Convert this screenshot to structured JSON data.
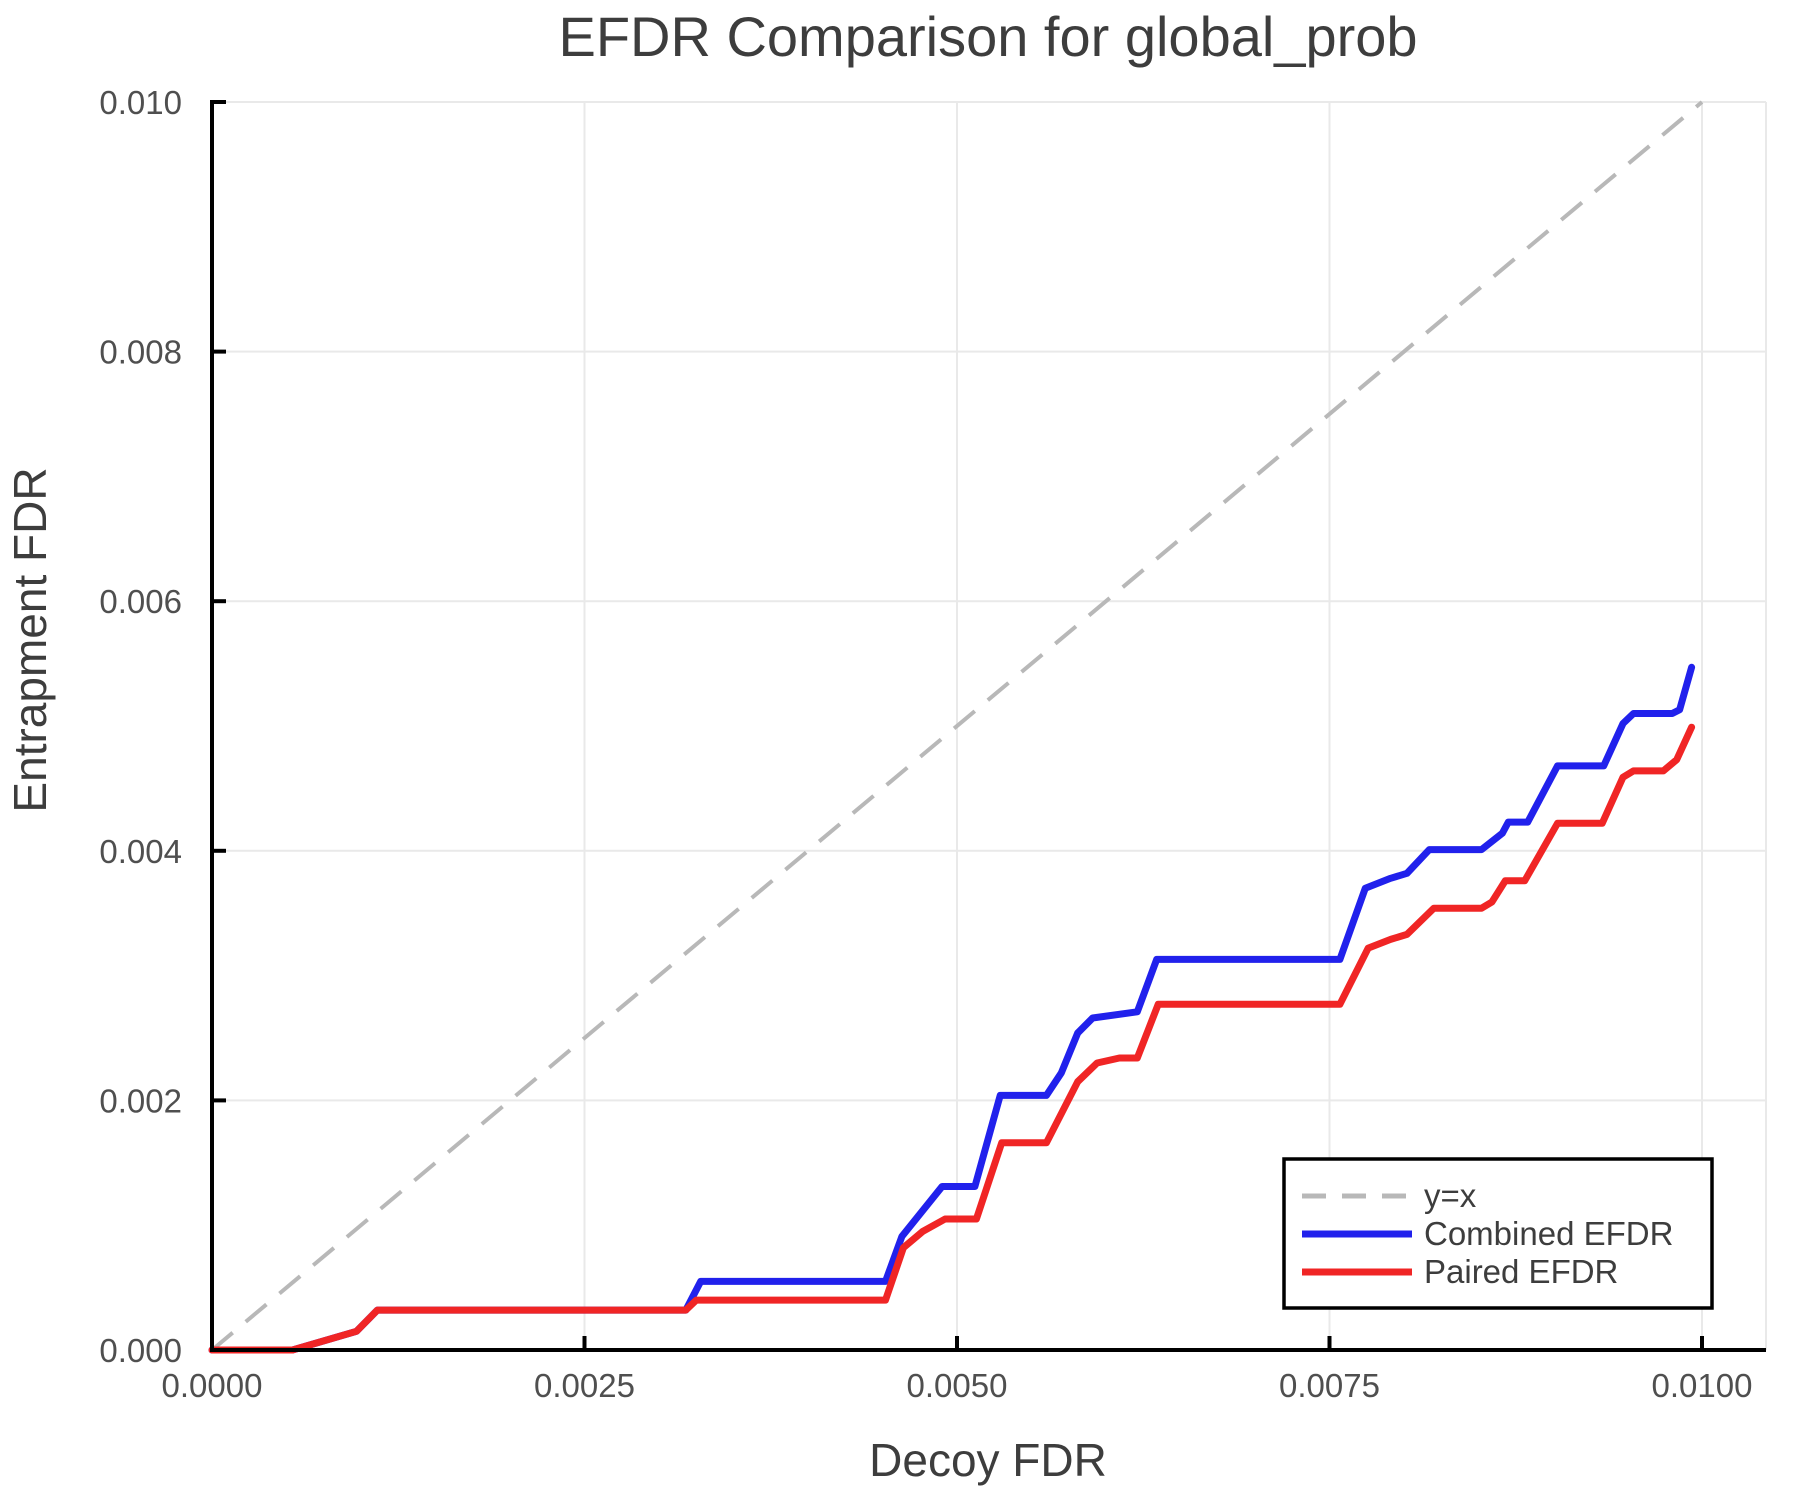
{
  "chart_data": {
    "type": "line",
    "title": "EFDR Comparison for global_prob",
    "xlabel": "Decoy FDR",
    "ylabel": "Entrapment FDR",
    "xlim": [
      0.0,
      0.01
    ],
    "ylim": [
      0.0,
      0.01
    ],
    "grid": true,
    "x_ticks": {
      "values": [
        0.0,
        0.0025,
        0.005,
        0.0075,
        0.01
      ],
      "labels": [
        "0.0000",
        "0.0025",
        "0.0050",
        "0.0075",
        "0.0100"
      ]
    },
    "y_ticks": {
      "values": [
        0.0,
        0.002,
        0.004,
        0.006,
        0.008,
        0.01
      ],
      "labels": [
        "0.000",
        "0.002",
        "0.004",
        "0.006",
        "0.008",
        "0.010"
      ]
    },
    "colors": {
      "grid": "#e9e9e9",
      "spine": "#000000",
      "tick_label": "#4f4f4f",
      "text": "#3d3d3d",
      "legend_border": "#000000",
      "legend_bg": "#ffffff"
    },
    "refline": {
      "label": "y=x",
      "color": "#b8b8b8",
      "style": "dashed",
      "points": [
        [
          0.0,
          0.0
        ],
        [
          0.01,
          0.01
        ]
      ]
    },
    "legend": {
      "position": "lower right",
      "entries": [
        "y=x",
        "Combined EFDR",
        "Paired EFDR"
      ]
    },
    "series": [
      {
        "name": "Combined EFDR",
        "color": "#2121ec",
        "points": [
          [
            0.0,
            0.0
          ],
          [
            0.00054,
            0.0
          ],
          [
            0.00097,
            0.00015
          ],
          [
            0.00111,
            0.00032
          ],
          [
            0.00318,
            0.00032
          ],
          [
            0.00328,
            0.00055
          ],
          [
            0.00452,
            0.00055
          ],
          [
            0.00463,
            0.00091
          ],
          [
            0.0049,
            0.00131
          ],
          [
            0.00512,
            0.00131
          ],
          [
            0.00529,
            0.00204
          ],
          [
            0.0056,
            0.00204
          ],
          [
            0.0057,
            0.00222
          ],
          [
            0.00581,
            0.00254
          ],
          [
            0.00591,
            0.00266
          ],
          [
            0.00621,
            0.00271
          ],
          [
            0.00634,
            0.00313
          ],
          [
            0.00757,
            0.00313
          ],
          [
            0.00774,
            0.0037
          ],
          [
            0.00791,
            0.00378
          ],
          [
            0.00802,
            0.00382
          ],
          [
            0.00817,
            0.00401
          ],
          [
            0.00852,
            0.00401
          ],
          [
            0.00866,
            0.00414
          ],
          [
            0.0087,
            0.00423
          ],
          [
            0.00883,
            0.00423
          ],
          [
            0.00903,
            0.00468
          ],
          [
            0.00934,
            0.00468
          ],
          [
            0.00947,
            0.00502
          ],
          [
            0.00954,
            0.0051
          ],
          [
            0.0098,
            0.0051
          ],
          [
            0.00985,
            0.00513
          ],
          [
            0.00993,
            0.00547
          ]
        ]
      },
      {
        "name": "Paired EFDR",
        "color": "#f02525",
        "points": [
          [
            0.0,
            0.0
          ],
          [
            0.00054,
            0.0
          ],
          [
            0.00097,
            0.00015
          ],
          [
            0.00111,
            0.00032
          ],
          [
            0.00318,
            0.00032
          ],
          [
            0.00325,
            0.0004
          ],
          [
            0.00452,
            0.0004
          ],
          [
            0.00464,
            0.00082
          ],
          [
            0.00477,
            0.00095
          ],
          [
            0.00492,
            0.00105
          ],
          [
            0.00513,
            0.00105
          ],
          [
            0.0053,
            0.00166
          ],
          [
            0.0056,
            0.00166
          ],
          [
            0.00581,
            0.00215
          ],
          [
            0.00594,
            0.0023
          ],
          [
            0.00609,
            0.00234
          ],
          [
            0.00621,
            0.00234
          ],
          [
            0.00635,
            0.00277
          ],
          [
            0.00757,
            0.00277
          ],
          [
            0.00776,
            0.00322
          ],
          [
            0.00791,
            0.00329
          ],
          [
            0.00802,
            0.00333
          ],
          [
            0.0082,
            0.00354
          ],
          [
            0.00852,
            0.00354
          ],
          [
            0.00859,
            0.00359
          ],
          [
            0.00868,
            0.00376
          ],
          [
            0.00881,
            0.00376
          ],
          [
            0.00903,
            0.00422
          ],
          [
            0.00933,
            0.00422
          ],
          [
            0.00947,
            0.00459
          ],
          [
            0.00954,
            0.00464
          ],
          [
            0.00974,
            0.00464
          ],
          [
            0.00983,
            0.00473
          ],
          [
            0.00993,
            0.00499
          ]
        ]
      }
    ]
  }
}
